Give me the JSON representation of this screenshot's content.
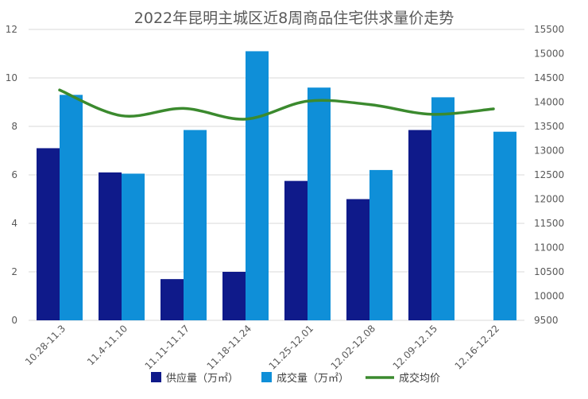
{
  "chart_data": {
    "type": "bar",
    "title": "2022年昆明主城区近8周商品住宅供求量价走势",
    "categories": [
      "10.28-11.3",
      "11.4-11.10",
      "11.11-11.17",
      "11.18-11.24",
      "11.25-12.01",
      "12.02-12.08",
      "12.09-12.15",
      "12.16-12.22"
    ],
    "series": [
      {
        "name": "供应量（万㎡）",
        "type": "bar",
        "axis": "left",
        "color": "#0f1a8a",
        "values": [
          7.1,
          6.1,
          1.7,
          2.0,
          5.75,
          5.0,
          7.85,
          null
        ]
      },
      {
        "name": "成交量（万㎡）",
        "type": "bar",
        "axis": "left",
        "color": "#0f8fd8",
        "values": [
          9.3,
          6.05,
          7.85,
          11.1,
          9.6,
          6.2,
          9.2,
          7.78
        ]
      },
      {
        "name": "成交均价",
        "type": "line",
        "axis": "right",
        "color": "#3b8a2e",
        "values": [
          14250,
          13720,
          13870,
          13650,
          14020,
          13950,
          13750,
          13860
        ]
      }
    ],
    "y_left": {
      "min": 0,
      "max": 12,
      "ticks": [
        "0",
        "2",
        "4",
        "6",
        "8",
        "10",
        "12"
      ]
    },
    "y_right": {
      "min": 9500,
      "max": 15500,
      "ticks": [
        "9500",
        "10000",
        "10500",
        "11000",
        "11500",
        "12000",
        "12500",
        "13000",
        "13500",
        "14000",
        "14500",
        "15000",
        "15500"
      ]
    },
    "x_tick_labels": [
      "10.28-11.3",
      "11.4-11.10",
      "11.11-11.17",
      "11.18-11.24",
      "11.25-12.01",
      "12.02-12.08",
      "12.09-12.15",
      "12.16-12.22"
    ],
    "grid": true,
    "legend_position": "bottom"
  }
}
